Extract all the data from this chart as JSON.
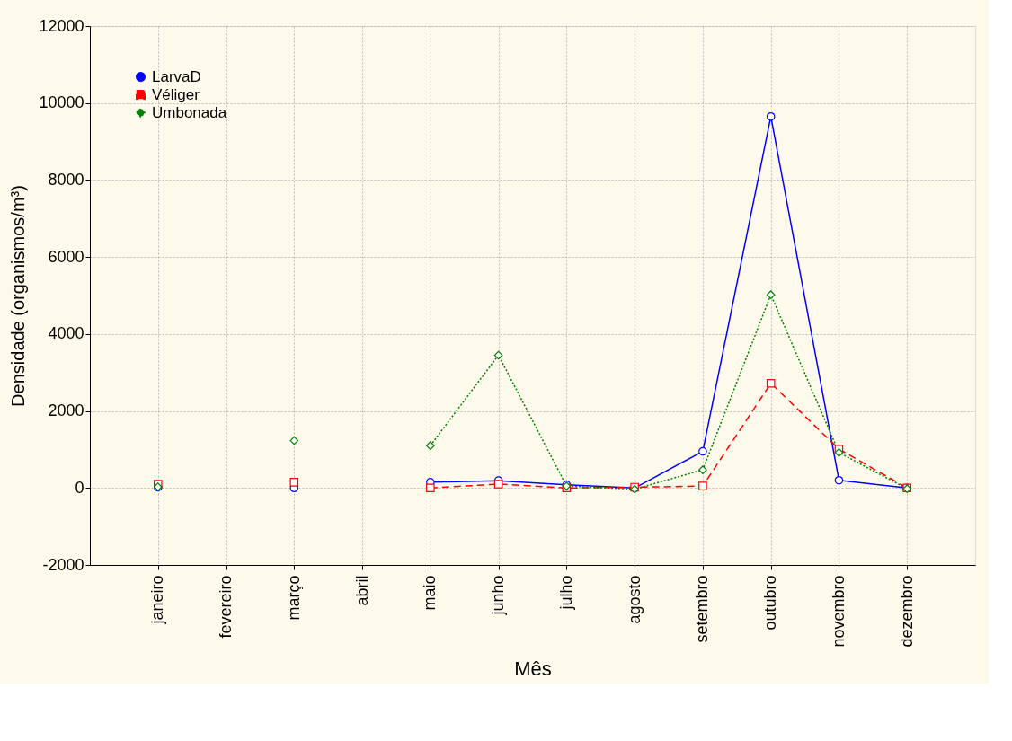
{
  "chart_data": {
    "type": "line",
    "xlabel": "Mês",
    "ylabel": "Densidade (organismos/m³)",
    "categories": [
      "janeiro",
      "fevereiro",
      "março",
      "abril",
      "maio",
      "junho",
      "julho",
      "agosto",
      "setembro",
      "outubro",
      "novembro",
      "dezembro"
    ],
    "series": [
      {
        "name": "LarvaD",
        "color": "#0000ff",
        "marker": "circle",
        "line_style": "solid",
        "values": [
          20,
          null,
          0,
          null,
          150,
          190,
          80,
          0,
          950,
          9650,
          200,
          0
        ]
      },
      {
        "name": "Véliger",
        "color": "#ff0000",
        "marker": "square",
        "line_style": "dashed",
        "values": [
          100,
          null,
          150,
          null,
          0,
          100,
          0,
          20,
          50,
          2720,
          1010,
          0
        ]
      },
      {
        "name": "Umbonada",
        "color": "#008000",
        "marker": "diamond",
        "line_style": "dotted",
        "values": [
          30,
          null,
          1230,
          null,
          1100,
          3450,
          50,
          -30,
          470,
          5020,
          920,
          -20
        ]
      }
    ],
    "ylim": [
      -2000,
      12000
    ],
    "yticks": [
      -2000,
      0,
      2000,
      4000,
      6000,
      8000,
      10000,
      12000
    ],
    "grid": true,
    "legend": "top left"
  }
}
